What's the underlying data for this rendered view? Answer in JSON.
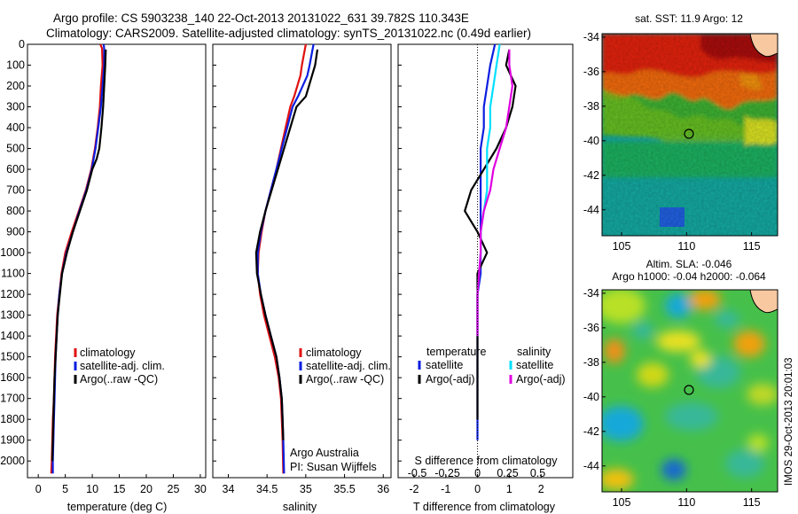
{
  "header": {
    "line1": "Argo profile: CS 5903238_140 22-Oct-2013 20131022_631 39.782S 110.343E",
    "line2": "Climatology: CARS2009. Satellite-adjusted climatology: synTS_20131022.nc (0.49d earlier)"
  },
  "colors": {
    "climatology": "#e01010",
    "satellite": "#0a1ee0",
    "argo": "#000000",
    "sal_satellite": "#00e0ff",
    "sal_argo": "#e000e0"
  },
  "side_text": "IMOS 29-Oct-2013 20:01:03",
  "chart_data": [
    {
      "type": "line",
      "xlabel": "temperature (deg C)",
      "ylabel": "",
      "xlim": [
        -2,
        31
      ],
      "ylim": [
        2080,
        0
      ],
      "xticks": [
        0,
        5,
        10,
        15,
        20,
        25,
        30
      ],
      "yticks": [
        0,
        100,
        200,
        300,
        400,
        500,
        600,
        700,
        800,
        900,
        1000,
        1100,
        1200,
        1300,
        1400,
        1500,
        1600,
        1700,
        1800,
        1900,
        2000
      ],
      "legend": [
        "climatology",
        "satellite-adj. clim.",
        "Argo(..raw -QC)"
      ],
      "legend_position": "lower-right",
      "series": [
        {
          "name": "climatology",
          "x": [
            11.5,
            11.8,
            11.9,
            11.6,
            11.4,
            11.0,
            10.5,
            9.8,
            8.8,
            7.5,
            6.2,
            5.0,
            4.3,
            3.9,
            3.5,
            3.3,
            3.1,
            3.0,
            2.9,
            2.7,
            2.6,
            2.5,
            2.4
          ],
          "y": [
            0,
            20,
            100,
            200,
            300,
            400,
            500,
            600,
            700,
            800,
            900,
            1000,
            1100,
            1200,
            1300,
            1400,
            1500,
            1600,
            1700,
            1800,
            1900,
            2000,
            2060
          ]
        },
        {
          "name": "satellite-adj. clim.",
          "x": [
            12.1,
            12.2,
            12.2,
            11.9,
            11.6,
            11.1,
            10.6,
            9.9,
            8.9,
            7.6,
            6.4,
            5.2,
            4.4,
            3.9,
            3.6,
            3.4,
            3.2,
            3.1,
            3.0,
            2.9,
            2.8,
            2.7,
            2.7
          ],
          "y": [
            0,
            20,
            100,
            200,
            300,
            400,
            500,
            600,
            700,
            800,
            900,
            1000,
            1100,
            1200,
            1300,
            1400,
            1500,
            1600,
            1700,
            1800,
            1900,
            2000,
            2060
          ]
        },
        {
          "name": "Argo(..raw -QC)",
          "x": [
            12.5,
            12.4,
            12.2,
            12.0,
            11.7,
            11.3,
            10.8,
            10.0,
            9.0,
            7.7,
            6.4,
            5.3,
            4.4,
            4.0,
            3.6,
            3.4,
            3.2,
            3.0,
            2.9,
            2.8,
            2.7,
            2.6
          ],
          "y": [
            25,
            100,
            200,
            300,
            400,
            500,
            550,
            600,
            700,
            800,
            900,
            1000,
            1100,
            1200,
            1300,
            1400,
            1500,
            1600,
            1700,
            1800,
            1900,
            2000
          ]
        }
      ]
    },
    {
      "type": "line",
      "xlabel": "salinity",
      "ylabel": "",
      "xlim": [
        33.8,
        36.1
      ],
      "ylim": [
        2080,
        0
      ],
      "xticks": [
        34,
        34.5,
        35,
        35.5,
        36
      ],
      "legend": [
        "climatology",
        "satellite-adj. clim.",
        "Argo(..raw -QC)"
      ],
      "legend_position": "lower-right",
      "annotation": [
        "Argo Australia",
        "PI: Susan Wijffels"
      ],
      "series": [
        {
          "name": "climatology",
          "x": [
            35.0,
            34.95,
            34.93,
            34.85,
            34.8,
            34.74,
            34.68,
            34.62,
            34.55,
            34.48,
            34.43,
            34.39,
            34.38,
            34.41,
            34.46,
            34.53,
            34.6,
            34.65,
            34.68,
            34.69,
            34.7,
            34.71
          ],
          "y": [
            0,
            100,
            150,
            250,
            300,
            400,
            500,
            600,
            700,
            800,
            900,
            1000,
            1100,
            1200,
            1300,
            1400,
            1500,
            1600,
            1700,
            1800,
            1900,
            2060
          ]
        },
        {
          "name": "satellite-adj. clim.",
          "x": [
            35.1,
            35.05,
            35.02,
            34.9,
            34.83,
            34.76,
            34.69,
            34.62,
            34.55,
            34.48,
            34.42,
            34.38,
            34.38,
            34.42,
            34.48,
            34.55,
            34.62,
            34.66,
            34.69,
            34.7,
            34.71,
            34.72
          ],
          "y": [
            0,
            100,
            150,
            250,
            300,
            400,
            500,
            600,
            700,
            800,
            900,
            1000,
            1100,
            1200,
            1300,
            1400,
            1500,
            1600,
            1700,
            1800,
            1900,
            2060
          ]
        },
        {
          "name": "Argo(..raw -QC)",
          "x": [
            35.15,
            35.12,
            35.08,
            35.0,
            34.88,
            34.8,
            34.72,
            34.64,
            34.56,
            34.48,
            34.41,
            34.36,
            34.37,
            34.42,
            34.48,
            34.55,
            34.62,
            34.66,
            34.69,
            34.7,
            34.71
          ],
          "y": [
            25,
            100,
            150,
            250,
            300,
            400,
            500,
            600,
            700,
            800,
            900,
            1000,
            1100,
            1200,
            1300,
            1400,
            1500,
            1600,
            1700,
            1800,
            1900
          ]
        }
      ]
    },
    {
      "type": "line",
      "xlabel": "T difference from climatology",
      "xlabel_top": "S difference from climatology",
      "ylabel": "",
      "xlim": [
        -2.5,
        3.0
      ],
      "ylim": [
        2080,
        0
      ],
      "xticks": [
        -2,
        -1,
        0,
        1,
        2
      ],
      "xticks_top": [
        "-0.5",
        "-0.25",
        "0",
        "0.25",
        "0.5"
      ],
      "legend_headers": [
        "temperature",
        "salinity"
      ],
      "legend": [
        "satellite",
        "Argo(-adj)",
        "satellite",
        "Argo(-adj)"
      ],
      "legend_position": "lower-right",
      "series": [
        {
          "name": "satellite",
          "x": [
            0.55,
            0.4,
            0.3,
            0.2,
            0.2,
            0.1,
            0.1,
            0.1,
            0.1,
            0.1,
            0.1,
            0.1,
            0.0,
            0.0,
            0.0,
            0.0,
            0.0,
            0.0,
            0.0
          ],
          "y": [
            0,
            100,
            200,
            300,
            400,
            500,
            600,
            700,
            800,
            900,
            1000,
            1100,
            1200,
            1300,
            1400,
            1500,
            1600,
            1800,
            1900
          ]
        },
        {
          "name": "Argo(-adj)",
          "x": [
            1.0,
            0.9,
            1.2,
            1.1,
            0.9,
            0.6,
            0.2,
            -0.2,
            -0.4,
            0.0,
            0.3,
            0.0,
            0.0,
            0.0,
            0.0,
            0.0,
            0.0,
            0.0
          ],
          "y": [
            25,
            100,
            200,
            300,
            400,
            500,
            600,
            700,
            800,
            900,
            1000,
            1100,
            1200,
            1300,
            1400,
            1500,
            1700,
            1800
          ]
        },
        {
          "name": "satellite",
          "x": [
            0.7,
            0.6,
            0.5,
            0.4,
            0.4,
            0.3,
            0.3,
            0.3,
            0.2,
            0.1,
            0.1,
            0.0,
            0.0
          ],
          "y": [
            0,
            100,
            200,
            300,
            400,
            500,
            600,
            700,
            800,
            900,
            1000,
            1200,
            1400
          ]
        },
        {
          "name": "Argo(-adj)",
          "x": [
            1.0,
            1.0,
            1.1,
            1.0,
            0.9,
            0.7,
            0.5,
            0.4,
            0.2,
            0.1,
            0.1,
            0.0,
            0.0
          ],
          "y": [
            25,
            100,
            200,
            300,
            400,
            500,
            600,
            700,
            800,
            900,
            1000,
            1200,
            1400
          ]
        }
      ]
    },
    {
      "type": "heatmap",
      "title": "sat. SST: 11.9 Argo: 12",
      "xticks": [
        105,
        110,
        115
      ],
      "yticks": [
        -34,
        -36,
        -38,
        -40,
        -42,
        -44
      ],
      "xlim": [
        103.5,
        117
      ],
      "ylim": [
        -45.5,
        -33.8
      ],
      "marker": {
        "x": 110.343,
        "y": -39.782
      }
    },
    {
      "type": "heatmap",
      "title": "Altim. SLA: -0.046",
      "subtitle": "Argo h1000: -0.04 h2000: -0.064",
      "xticks": [
        105,
        110,
        115
      ],
      "yticks": [
        -34,
        -36,
        -38,
        -40,
        -42,
        -44
      ],
      "xlim": [
        103.5,
        117
      ],
      "ylim": [
        -45.5,
        -33.8
      ],
      "marker": {
        "x": 110.343,
        "y": -39.782
      }
    }
  ]
}
